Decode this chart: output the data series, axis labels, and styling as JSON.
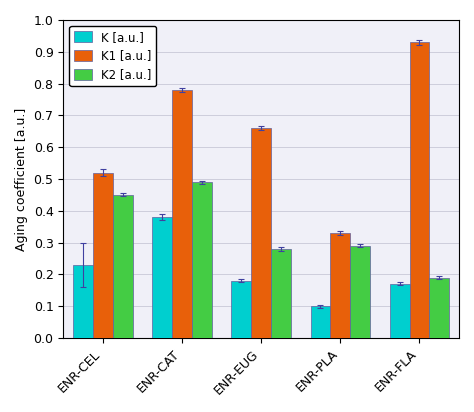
{
  "categories": [
    "ENR-CEL",
    "ENR-CAT",
    "ENR-EUG",
    "ENR-PLA",
    "ENR-FLA"
  ],
  "K": [
    0.23,
    0.38,
    0.18,
    0.1,
    0.17
  ],
  "K1": [
    0.52,
    0.78,
    0.66,
    0.33,
    0.93
  ],
  "K2": [
    0.45,
    0.49,
    0.28,
    0.29,
    0.19
  ],
  "K_err": [
    0.07,
    0.01,
    0.005,
    0.005,
    0.005
  ],
  "K1_err": [
    0.01,
    0.007,
    0.006,
    0.006,
    0.008
  ],
  "K2_err": [
    0.005,
    0.005,
    0.005,
    0.005,
    0.005
  ],
  "color_K": "#00CFCF",
  "color_K1": "#E8600A",
  "color_K2": "#44CC44",
  "ylabel": "Aging coefficient [a.u.]",
  "ylim": [
    0.0,
    1.0
  ],
  "yticks": [
    0.0,
    0.1,
    0.2,
    0.3,
    0.4,
    0.5,
    0.6,
    0.7,
    0.8,
    0.9,
    1.0
  ],
  "legend_labels": [
    "K [a.u.]",
    "K1 [a.u.]",
    "K2 [a.u.]"
  ],
  "bar_width": 0.25,
  "edgecolor": "#6060A0",
  "background_color": "#F0F0F8"
}
